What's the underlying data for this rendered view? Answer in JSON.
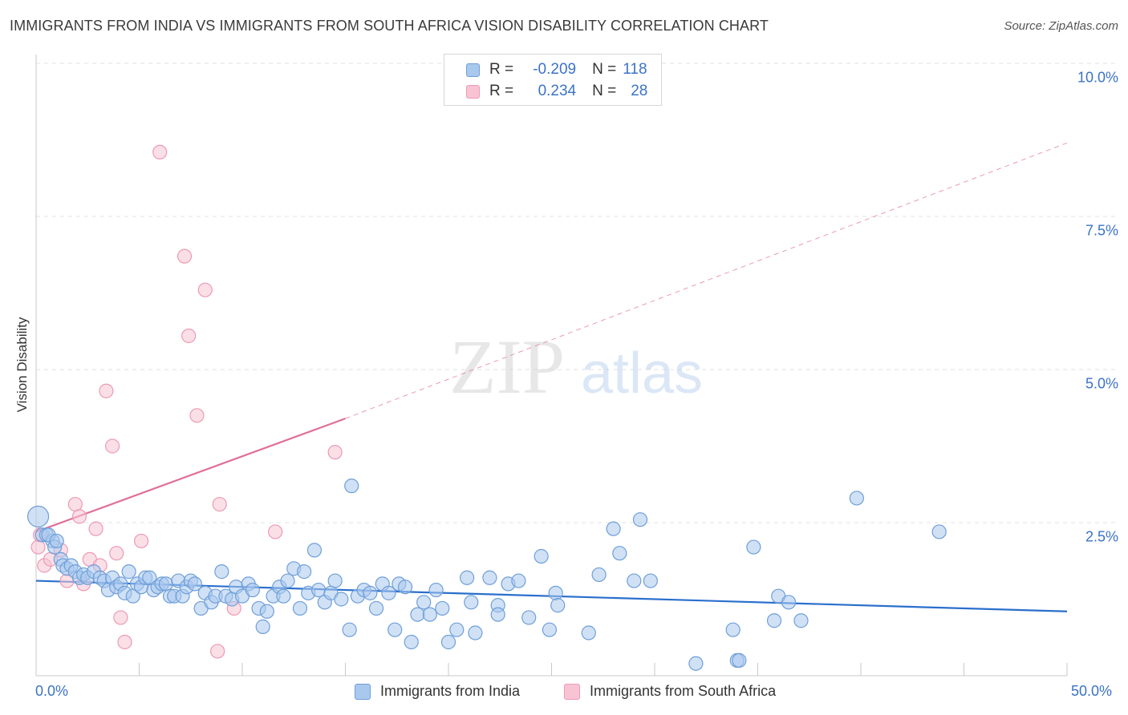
{
  "title": "IMMIGRANTS FROM INDIA VS IMMIGRANTS FROM SOUTH AFRICA VISION DISABILITY CORRELATION CHART",
  "source": "Source: ZipAtlas.com",
  "watermark": {
    "zip": "ZIP",
    "atlas": "atlas"
  },
  "legend": {
    "r_label": "R =",
    "n_label": "N =",
    "india": {
      "r": "-0.209",
      "n": "118"
    },
    "south_africa": {
      "r": "0.234",
      "n": "28"
    }
  },
  "colors": {
    "india_fill": "#a9c8ee",
    "india_stroke": "#6f9fd8",
    "india_line": "#2a6fcc",
    "sa_fill": "#f8c4d4",
    "sa_stroke": "#ec9ab5",
    "sa_line": "#e0709a",
    "tick_text": "#3b73c4",
    "grid": "#e0e0e0"
  },
  "chart_data": {
    "type": "scatter",
    "title": "IMMIGRANTS FROM INDIA VS IMMIGRANTS FROM SOUTH AFRICA VISION DISABILITY CORRELATION CHART",
    "xlabel": "",
    "ylabel": "Vision Disability",
    "x_tick_labels": [
      "0.0%",
      "50.0%"
    ],
    "y_tick_labels": [
      "10.0%",
      "7.5%",
      "5.0%",
      "2.5%"
    ],
    "xlim": [
      0,
      50
    ],
    "ylim": [
      0,
      10
    ],
    "y_ticks": [
      10,
      7.5,
      5,
      2.5
    ],
    "grid": true,
    "legend_position": "top-center",
    "series": [
      {
        "name": "Immigrants from India",
        "points": [
          [
            0.1,
            2.6
          ],
          [
            0.3,
            2.3
          ],
          [
            0.5,
            2.3
          ],
          [
            0.8,
            2.2
          ],
          [
            0.9,
            2.1
          ],
          [
            1.2,
            1.9
          ],
          [
            1.3,
            1.8
          ],
          [
            1.5,
            1.75
          ],
          [
            1.7,
            1.8
          ],
          [
            1.9,
            1.7
          ],
          [
            2.1,
            1.6
          ],
          [
            2.3,
            1.65
          ],
          [
            2.5,
            1.6
          ],
          [
            2.8,
            1.7
          ],
          [
            3.1,
            1.6
          ],
          [
            3.3,
            1.55
          ],
          [
            3.5,
            1.4
          ],
          [
            3.7,
            1.6
          ],
          [
            3.9,
            1.45
          ],
          [
            4.1,
            1.5
          ],
          [
            4.3,
            1.35
          ],
          [
            4.5,
            1.7
          ],
          [
            4.7,
            1.3
          ],
          [
            4.9,
            1.5
          ],
          [
            5.1,
            1.45
          ],
          [
            5.3,
            1.6
          ],
          [
            5.5,
            1.6
          ],
          [
            5.7,
            1.4
          ],
          [
            5.9,
            1.45
          ],
          [
            6.1,
            1.5
          ],
          [
            6.3,
            1.5
          ],
          [
            6.5,
            1.3
          ],
          [
            6.7,
            1.3
          ],
          [
            6.9,
            1.55
          ],
          [
            7.1,
            1.3
          ],
          [
            7.3,
            1.45
          ],
          [
            7.5,
            1.55
          ],
          [
            7.7,
            1.5
          ],
          [
            8.0,
            1.1
          ],
          [
            8.2,
            1.35
          ],
          [
            8.5,
            1.2
          ],
          [
            8.7,
            1.3
          ],
          [
            9.0,
            1.7
          ],
          [
            9.2,
            1.3
          ],
          [
            9.5,
            1.25
          ],
          [
            9.7,
            1.45
          ],
          [
            10.0,
            1.3
          ],
          [
            10.3,
            1.5
          ],
          [
            10.5,
            1.4
          ],
          [
            10.8,
            1.1
          ],
          [
            11.0,
            0.8
          ],
          [
            11.2,
            1.05
          ],
          [
            11.5,
            1.3
          ],
          [
            11.8,
            1.45
          ],
          [
            12.0,
            1.3
          ],
          [
            12.2,
            1.55
          ],
          [
            12.5,
            1.75
          ],
          [
            12.8,
            1.1
          ],
          [
            13.0,
            1.7
          ],
          [
            13.2,
            1.35
          ],
          [
            13.5,
            2.05
          ],
          [
            13.7,
            1.4
          ],
          [
            14.0,
            1.2
          ],
          [
            14.3,
            1.35
          ],
          [
            14.5,
            1.55
          ],
          [
            14.8,
            1.25
          ],
          [
            15.2,
            0.75
          ],
          [
            15.3,
            3.1
          ],
          [
            15.6,
            1.3
          ],
          [
            15.9,
            1.4
          ],
          [
            16.2,
            1.35
          ],
          [
            16.5,
            1.1
          ],
          [
            16.8,
            1.5
          ],
          [
            17.1,
            1.35
          ],
          [
            17.4,
            0.75
          ],
          [
            17.6,
            1.5
          ],
          [
            17.9,
            1.45
          ],
          [
            18.2,
            0.55
          ],
          [
            18.5,
            1.0
          ],
          [
            18.8,
            1.2
          ],
          [
            19.1,
            1.0
          ],
          [
            19.4,
            1.4
          ],
          [
            19.7,
            1.1
          ],
          [
            20.0,
            0.55
          ],
          [
            20.4,
            0.75
          ],
          [
            20.9,
            1.6
          ],
          [
            21.1,
            1.2
          ],
          [
            21.3,
            0.7
          ],
          [
            22.0,
            1.6
          ],
          [
            22.4,
            1.15
          ],
          [
            22.4,
            1.0
          ],
          [
            22.9,
            1.5
          ],
          [
            23.4,
            1.55
          ],
          [
            23.9,
            0.95
          ],
          [
            24.5,
            1.95
          ],
          [
            24.9,
            0.75
          ],
          [
            25.2,
            1.35
          ],
          [
            25.3,
            1.15
          ],
          [
            26.8,
            0.7
          ],
          [
            27.3,
            1.65
          ],
          [
            28.0,
            2.4
          ],
          [
            28.3,
            2.0
          ],
          [
            29.0,
            1.55
          ],
          [
            29.3,
            2.55
          ],
          [
            29.8,
            1.55
          ],
          [
            32.0,
            0.2
          ],
          [
            33.8,
            0.75
          ],
          [
            34.0,
            0.25
          ],
          [
            34.1,
            0.25
          ],
          [
            34.8,
            2.1
          ],
          [
            35.8,
            0.9
          ],
          [
            36.0,
            1.3
          ],
          [
            36.5,
            1.2
          ],
          [
            37.1,
            0.9
          ],
          [
            39.8,
            2.9
          ],
          [
            43.8,
            2.35
          ],
          [
            0.6,
            2.3
          ],
          [
            1.0,
            2.2
          ]
        ],
        "trend": {
          "x": [
            0,
            50
          ],
          "y": [
            1.55,
            1.05
          ],
          "style": "solid"
        }
      },
      {
        "name": "Immigrants from South Africa",
        "points": [
          [
            0.1,
            2.1
          ],
          [
            0.2,
            2.3
          ],
          [
            0.4,
            1.8
          ],
          [
            0.7,
            1.9
          ],
          [
            1.2,
            2.05
          ],
          [
            1.5,
            1.55
          ],
          [
            1.9,
            2.8
          ],
          [
            2.1,
            2.6
          ],
          [
            2.3,
            1.5
          ],
          [
            2.6,
            1.9
          ],
          [
            2.9,
            2.4
          ],
          [
            3.1,
            1.8
          ],
          [
            3.4,
            4.65
          ],
          [
            3.7,
            3.75
          ],
          [
            3.9,
            2.0
          ],
          [
            4.1,
            0.95
          ],
          [
            4.3,
            0.55
          ],
          [
            5.1,
            2.2
          ],
          [
            6.0,
            8.55
          ],
          [
            7.2,
            6.85
          ],
          [
            7.4,
            5.55
          ],
          [
            7.8,
            4.25
          ],
          [
            8.2,
            6.3
          ],
          [
            8.8,
            0.4
          ],
          [
            8.9,
            2.8
          ],
          [
            9.6,
            1.1
          ],
          [
            11.6,
            2.35
          ],
          [
            14.5,
            3.65
          ]
        ],
        "trend": {
          "x": [
            0,
            15
          ],
          "y": [
            2.35,
            4.2
          ],
          "style": "solid",
          "extension": {
            "x": [
              15,
              50
            ],
            "y": [
              4.2,
              8.7
            ],
            "style": "dashed"
          }
        }
      }
    ]
  }
}
